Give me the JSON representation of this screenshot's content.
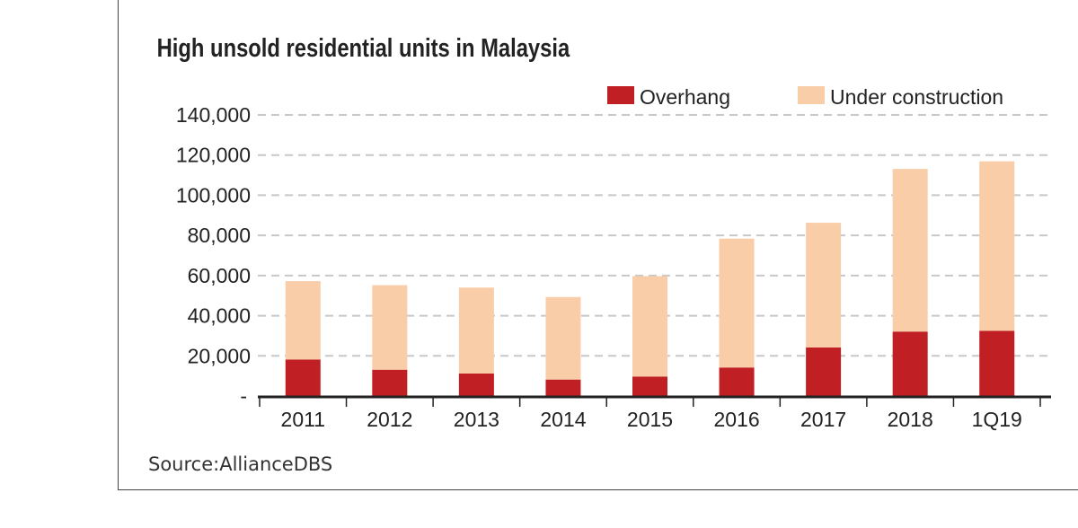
{
  "chart_data": {
    "type": "bar",
    "stacked": true,
    "title": "High unsold residential units in Malaysia",
    "source": "Source:AllianceDBS",
    "categories": [
      "2011",
      "2012",
      "2013",
      "2014",
      "2015",
      "2016",
      "2017",
      "2018",
      "1Q19"
    ],
    "series": [
      {
        "name": "Overhang",
        "color": "#c01f23",
        "values": [
          18200,
          13100,
          11200,
          8200,
          9700,
          14200,
          24200,
          32100,
          32500
        ]
      },
      {
        "name": "Under construction",
        "color": "#f8cda8",
        "values": [
          39000,
          42100,
          42800,
          41100,
          50000,
          64200,
          62100,
          81000,
          84400
        ]
      }
    ],
    "ylim": [
      0,
      140000
    ],
    "yticks": [
      0,
      20000,
      40000,
      60000,
      80000,
      100000,
      120000,
      140000
    ],
    "ytick_labels": [
      "-",
      "20,000",
      "40,000",
      "60,000",
      "80,000",
      "100,000",
      "120,000",
      "140,000"
    ],
    "grid": true,
    "legend": "top-right",
    "xlabel": "",
    "ylabel": ""
  }
}
